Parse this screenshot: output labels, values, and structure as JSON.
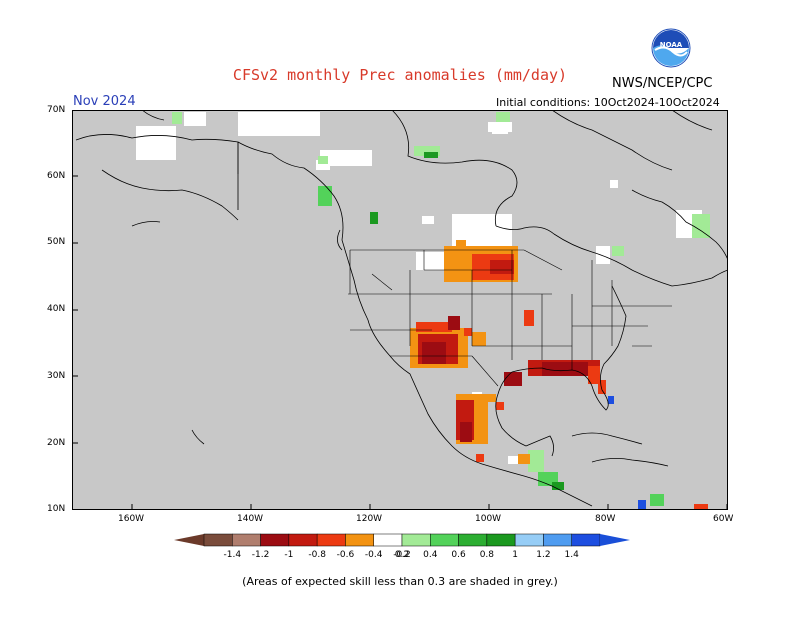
{
  "title": "CFSv2 monthly Prec anomalies (mm/day)",
  "month_label": "Nov 2024",
  "organization": "NWS/NCEP/CPC",
  "initial_conditions": "Initial conditions: 10Oct2024-10Oct2024",
  "logo_text": "NOAA",
  "footnote": "(Areas of expected skill less than 0.3 are shaded in grey.)",
  "colors": {
    "skill_mask": "#c8c8c8",
    "neutral": "#ffffff",
    "legend_arrow_dry": "#6b3a2a",
    "legend_arrow_wet": "#1a4fd8"
  },
  "map_axes": {
    "lat_ticks": [
      "70N",
      "60N",
      "50N",
      "40N",
      "30N",
      "20N",
      "10N"
    ],
    "lon_ticks": [
      "160W",
      "140W",
      "120W",
      "100W",
      "80W",
      "60W"
    ]
  },
  "colorbar": {
    "bins": [
      {
        "color": "#7a4c3b"
      },
      {
        "color": "#b07e6e"
      },
      {
        "color": "#9c0c12"
      },
      {
        "color": "#c21a10"
      },
      {
        "color": "#ec3a12"
      },
      {
        "color": "#f39313"
      },
      {
        "color": "#ffffff"
      },
      {
        "color": "#a2ea96"
      },
      {
        "color": "#53d25a"
      },
      {
        "color": "#2cae32"
      },
      {
        "color": "#1b9920"
      },
      {
        "color": "#96cdf6"
      },
      {
        "color": "#4f9cf0"
      },
      {
        "color": "#1d4ee0"
      }
    ],
    "tick_labels": [
      "-1.4",
      "-1.2",
      "-1",
      "-0.8",
      "-0.6",
      "-0.4",
      "-0.2",
      "0.2",
      "0.4",
      "0.6",
      "0.8",
      "1",
      "1.2",
      "1.4"
    ]
  },
  "anomaly_regions": [
    {
      "region": "Northern Plains / Dakotas",
      "category": "-0.8 to -0.4",
      "color": "#ec3a12"
    },
    {
      "region": "Arizona / New Mexico",
      "category": "< -1",
      "color": "#9c0c12"
    },
    {
      "region": "Gulf Coast / Southeast",
      "category": "-1 to -0.8",
      "color": "#9c0c12"
    },
    {
      "region": "Western Mexico",
      "category": "-1 to -0.4",
      "color": "#c21a10"
    },
    {
      "region": "Southern Mexico / Central America",
      "category": "0.2 to 0.6",
      "color": "#53d25a"
    },
    {
      "region": "Northwest Canada",
      "category": "0.2 to 0.4",
      "color": "#a2ea96"
    }
  ]
}
